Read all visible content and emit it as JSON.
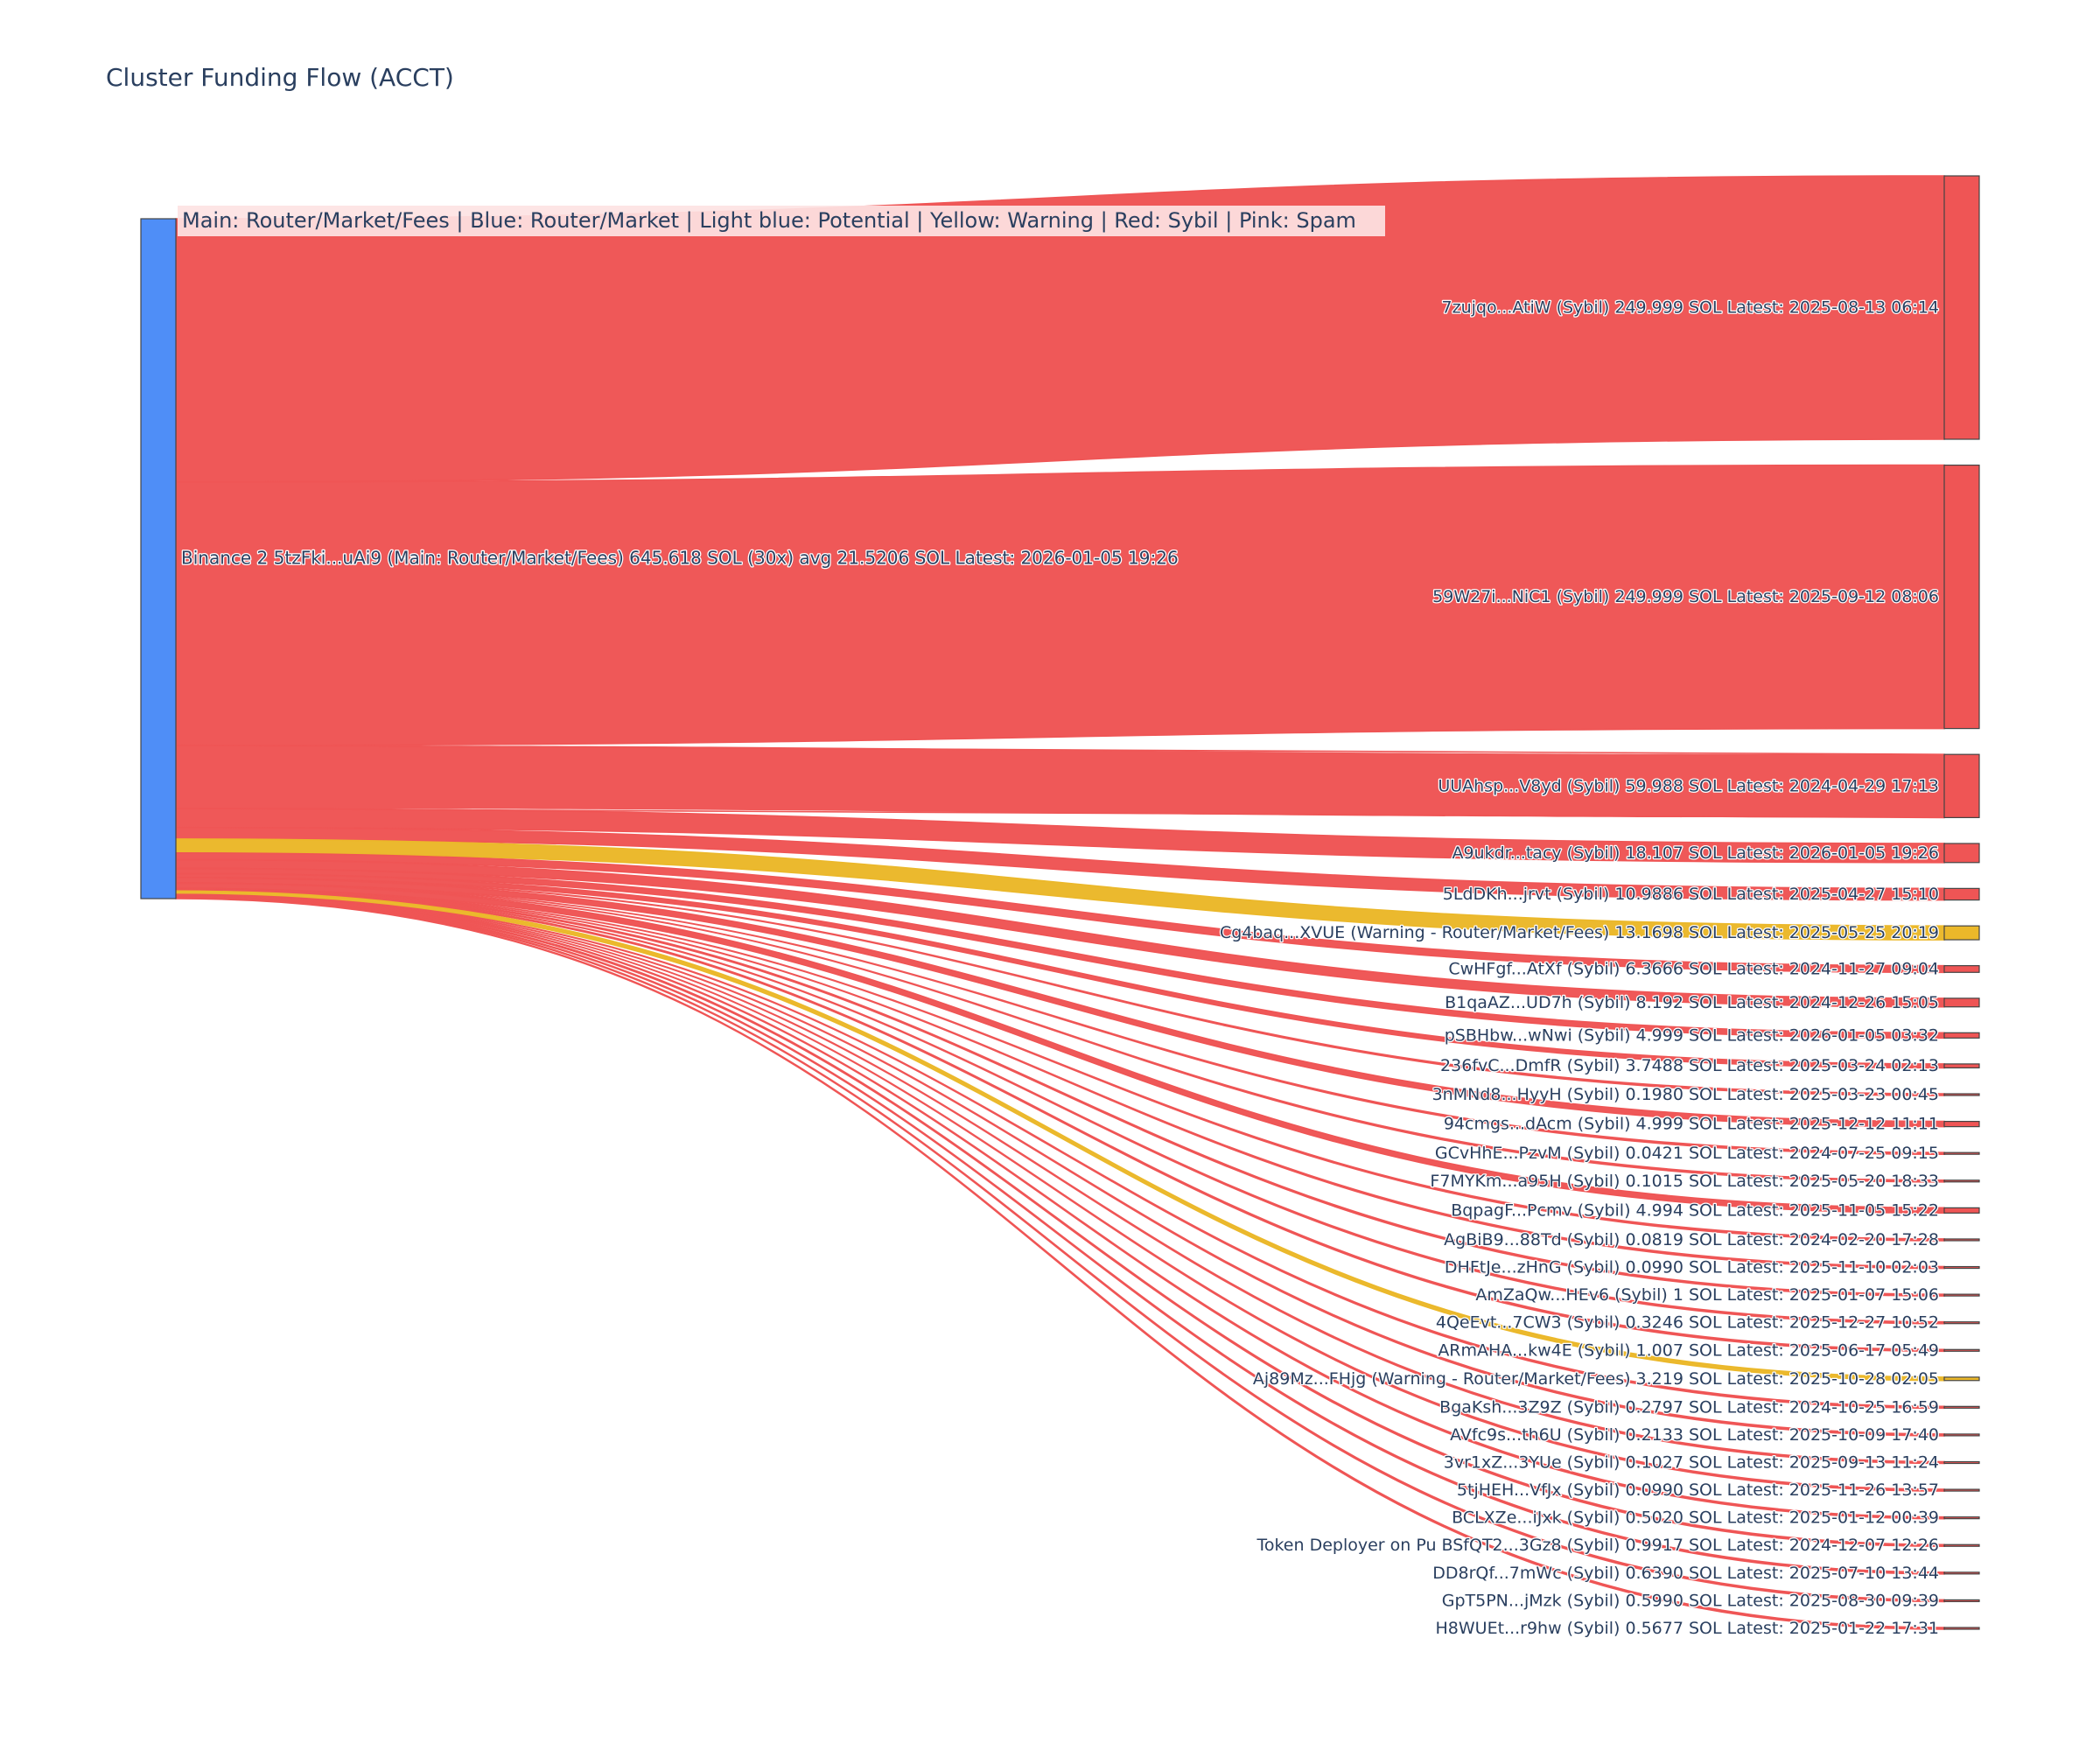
{
  "title": "Cluster Funding Flow (ACCT)",
  "legend_text": "Main: Router/Market/Fees  |  Blue: Router/Market | Light blue: Potential | Yellow: Warning | Red: Sybil | Pink: Spam",
  "colors": {
    "source_node": "#4f8ef7",
    "sybil": "#ef5555",
    "warning": "#ebb82a",
    "node_border": "#444444",
    "legend_bg": "#fde3e3"
  },
  "chart_data": {
    "type": "sankey",
    "title": "Cluster Funding Flow (ACCT)",
    "source": {
      "label": "Binance 2 5tzFki...uAi9 (Main: Router/Market/Fees) 645.618 SOL (30x) avg 21.5206 SOL Latest: 2026-01-05 19:26",
      "total_sol": 645.618,
      "count": 30
    },
    "targets": [
      {
        "label": "7zujqo...AtiW (Sybil) 249.999 SOL Latest: 2025-08-13 06:14",
        "value": 249.999,
        "category": "sybil"
      },
      {
        "label": "59W27i...NiC1 (Sybil) 249.999 SOL Latest: 2025-09-12 08:06",
        "value": 249.999,
        "category": "sybil"
      },
      {
        "label": "UUAhsp...V8yd (Sybil) 59.988 SOL Latest: 2024-04-29 17:13",
        "value": 59.988,
        "category": "sybil"
      },
      {
        "label": "A9ukdr...tacy (Sybil) 18.107 SOL Latest: 2026-01-05 19:26",
        "value": 18.107,
        "category": "sybil"
      },
      {
        "label": "5LdDKh...jrvt (Sybil) 10.9886 SOL Latest: 2025-04-27 15:10",
        "value": 10.9886,
        "category": "sybil"
      },
      {
        "label": "Cg4baq...XVUE (Warning - Router/Market/Fees) 13.1698 SOL Latest: 2025-05-25 20:19",
        "value": 13.1698,
        "category": "warning"
      },
      {
        "label": "CwHFgf...AtXf (Sybil) 6.3666 SOL Latest: 2024-11-27 09:04",
        "value": 6.3666,
        "category": "sybil"
      },
      {
        "label": "B1qaAZ...UD7h (Sybil) 8.192 SOL Latest: 2024-12-26 15:05",
        "value": 8.192,
        "category": "sybil"
      },
      {
        "label": "pSBHbw...wNwi (Sybil) 4.999 SOL Latest: 2026-01-05 03:32",
        "value": 4.999,
        "category": "sybil"
      },
      {
        "label": "236fvC...DmfR (Sybil) 3.7488 SOL Latest: 2025-03-24 02:13",
        "value": 3.7488,
        "category": "sybil"
      },
      {
        "label": "3nMNd8...HyyH (Sybil) 0.1980 SOL Latest: 2025-03-23 00:45",
        "value": 0.198,
        "category": "sybil"
      },
      {
        "label": "94cmgs...dAcm (Sybil) 4.999 SOL Latest: 2025-12-12 11:11",
        "value": 4.999,
        "category": "sybil"
      },
      {
        "label": "GCvHhE...PzvM (Sybil) 0.0421 SOL Latest: 2024-07-25 09:15",
        "value": 0.0421,
        "category": "sybil"
      },
      {
        "label": "F7MYKm...a95H (Sybil) 0.1015 SOL Latest: 2025-05-20 18:33",
        "value": 0.1015,
        "category": "sybil"
      },
      {
        "label": "BqpagF...Pcmv (Sybil) 4.994 SOL Latest: 2025-11-05 15:22",
        "value": 4.994,
        "category": "sybil"
      },
      {
        "label": "AgBiB9...88Td (Sybil) 0.0819 SOL Latest: 2024-02-20 17:28",
        "value": 0.0819,
        "category": "sybil"
      },
      {
        "label": "DHFtJe...zHnG (Sybil) 0.0990 SOL Latest: 2025-11-10 02:03",
        "value": 0.099,
        "category": "sybil"
      },
      {
        "label": "AmZaQw...HEv6 (Sybil) 1 SOL Latest: 2025-01-07 15:06",
        "value": 1,
        "category": "sybil"
      },
      {
        "label": "4QeEvt...7CW3 (Sybil) 0.3246 SOL Latest: 2025-12-27 10:52",
        "value": 0.3246,
        "category": "sybil"
      },
      {
        "label": "ARmAHA...kw4E (Sybil) 1.007 SOL Latest: 2025-06-17 05:49",
        "value": 1.007,
        "category": "sybil"
      },
      {
        "label": "Aj89Mz...FHjg (Warning - Router/Market/Fees) 3.219 SOL Latest: 2025-10-28 02:05",
        "value": 3.219,
        "category": "warning"
      },
      {
        "label": "BgaKsh...3Z9Z (Sybil) 0.2797 SOL Latest: 2024-10-25 16:59",
        "value": 0.2797,
        "category": "sybil"
      },
      {
        "label": "AVfc9s...th6U (Sybil) 0.2133 SOL Latest: 2025-10-09 17:40",
        "value": 0.2133,
        "category": "sybil"
      },
      {
        "label": "3vr1xZ...3YUe (Sybil) 0.1027 SOL Latest: 2025-09-13 11:24",
        "value": 0.1027,
        "category": "sybil"
      },
      {
        "label": "5tjHEH...VfJx (Sybil) 0.0990 SOL Latest: 2025-11-26 13:57",
        "value": 0.099,
        "category": "sybil"
      },
      {
        "label": "BCLXZe...iJxk (Sybil) 0.5020 SOL Latest: 2025-01-12 00:39",
        "value": 0.502,
        "category": "sybil"
      },
      {
        "label": "Token Deployer on Pu BSfQT2...3Gz8 (Sybil) 0.9917 SOL Latest: 2024-12-07 12:26",
        "value": 0.9917,
        "category": "sybil"
      },
      {
        "label": "DD8rQf...7mWc (Sybil) 0.6390 SOL Latest: 2025-07-10 13:44",
        "value": 0.639,
        "category": "sybil"
      },
      {
        "label": "GpT5PN...jMzk (Sybil) 0.5990 SOL Latest: 2025-08-30 09:39",
        "value": 0.599,
        "category": "sybil"
      },
      {
        "label": "H8WUEt...r9hw (Sybil) 0.5677 SOL Latest: 2025-01-22 17:31",
        "value": 0.5677,
        "category": "sybil"
      }
    ]
  }
}
